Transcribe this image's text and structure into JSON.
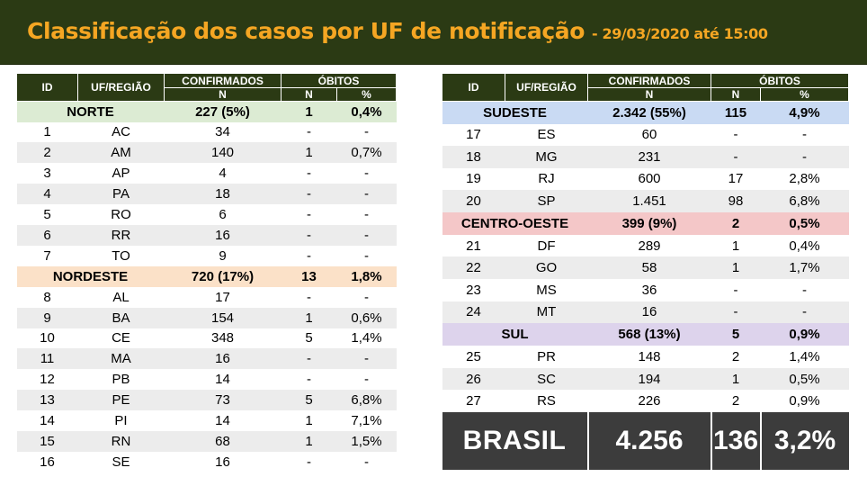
{
  "header": {
    "title": "Classificação dos casos por UF de notificação",
    "subtitle": "- 29/03/2020 até 15:00"
  },
  "columns": {
    "id": "ID",
    "uf": "UF/REGIÃO",
    "confirmados": "CONFIRMADOS",
    "obitos": "ÓBITOS",
    "n": "N",
    "pct": "%"
  },
  "left": {
    "norte": {
      "name": "NORTE",
      "confirmados": "227 (5%)",
      "obitos": "1",
      "pct": "0,4%"
    },
    "norte_rows": [
      {
        "id": "1",
        "uf": "AC",
        "n": "34",
        "ob": "-",
        "pct": "-"
      },
      {
        "id": "2",
        "uf": "AM",
        "n": "140",
        "ob": "1",
        "pct": "0,7%"
      },
      {
        "id": "3",
        "uf": "AP",
        "n": "4",
        "ob": "-",
        "pct": "-"
      },
      {
        "id": "4",
        "uf": "PA",
        "n": "18",
        "ob": "-",
        "pct": "-"
      },
      {
        "id": "5",
        "uf": "RO",
        "n": "6",
        "ob": "-",
        "pct": "-"
      },
      {
        "id": "6",
        "uf": "RR",
        "n": "16",
        "ob": "-",
        "pct": "-"
      },
      {
        "id": "7",
        "uf": "TO",
        "n": "9",
        "ob": "-",
        "pct": "-"
      }
    ],
    "nordeste": {
      "name": "NORDESTE",
      "confirmados": "720 (17%)",
      "obitos": "13",
      "pct": "1,8%"
    },
    "nordeste_rows": [
      {
        "id": "8",
        "uf": "AL",
        "n": "17",
        "ob": "-",
        "pct": "-"
      },
      {
        "id": "9",
        "uf": "BA",
        "n": "154",
        "ob": "1",
        "pct": "0,6%"
      },
      {
        "id": "10",
        "uf": "CE",
        "n": "348",
        "ob": "5",
        "pct": "1,4%"
      },
      {
        "id": "11",
        "uf": "MA",
        "n": "16",
        "ob": "-",
        "pct": "-"
      },
      {
        "id": "12",
        "uf": "PB",
        "n": "14",
        "ob": "-",
        "pct": "-"
      },
      {
        "id": "13",
        "uf": "PE",
        "n": "73",
        "ob": "5",
        "pct": "6,8%"
      },
      {
        "id": "14",
        "uf": "PI",
        "n": "14",
        "ob": "1",
        "pct": "7,1%"
      },
      {
        "id": "15",
        "uf": "RN",
        "n": "68",
        "ob": "1",
        "pct": "1,5%"
      },
      {
        "id": "16",
        "uf": "SE",
        "n": "16",
        "ob": "-",
        "pct": "-"
      }
    ]
  },
  "right": {
    "sudeste": {
      "name": "SUDESTE",
      "confirmados": "2.342 (55%)",
      "obitos": "115",
      "pct": "4,9%"
    },
    "sudeste_rows": [
      {
        "id": "17",
        "uf": "ES",
        "n": "60",
        "ob": "-",
        "pct": "-"
      },
      {
        "id": "18",
        "uf": "MG",
        "n": "231",
        "ob": "-",
        "pct": "-"
      },
      {
        "id": "19",
        "uf": "RJ",
        "n": "600",
        "ob": "17",
        "pct": "2,8%"
      },
      {
        "id": "20",
        "uf": "SP",
        "n": "1.451",
        "ob": "98",
        "pct": "6,8%"
      }
    ],
    "centro_oeste": {
      "name": "CENTRO-OESTE",
      "confirmados": "399 (9%)",
      "obitos": "2",
      "pct": "0,5%"
    },
    "centro_oeste_rows": [
      {
        "id": "21",
        "uf": "DF",
        "n": "289",
        "ob": "1",
        "pct": "0,4%"
      },
      {
        "id": "22",
        "uf": "GO",
        "n": "58",
        "ob": "1",
        "pct": "1,7%"
      },
      {
        "id": "23",
        "uf": "MS",
        "n": "36",
        "ob": "-",
        "pct": "-"
      },
      {
        "id": "24",
        "uf": "MT",
        "n": "16",
        "ob": "-",
        "pct": "-"
      }
    ],
    "sul": {
      "name": "SUL",
      "confirmados": "568 (13%)",
      "obitos": "5",
      "pct": "0,9%"
    },
    "sul_rows": [
      {
        "id": "25",
        "uf": "PR",
        "n": "148",
        "ob": "2",
        "pct": "1,4%"
      },
      {
        "id": "26",
        "uf": "SC",
        "n": "194",
        "ob": "1",
        "pct": "0,5%"
      },
      {
        "id": "27",
        "uf": "RS",
        "n": "226",
        "ob": "2",
        "pct": "0,9%"
      }
    ]
  },
  "brasil": {
    "label": "BRASIL",
    "confirmados": "4.256",
    "obitos": "136",
    "pct": "3,2%"
  },
  "colors": {
    "header_bg": "#2b3a14",
    "title": "#f5a623",
    "norte": "#dcebd3",
    "nordeste": "#fbe1c8",
    "sudeste": "#c9daf3",
    "centro_oeste": "#f4c7c8",
    "sul": "#ddd3ec",
    "brasil_bg": "#3c3c3c"
  }
}
